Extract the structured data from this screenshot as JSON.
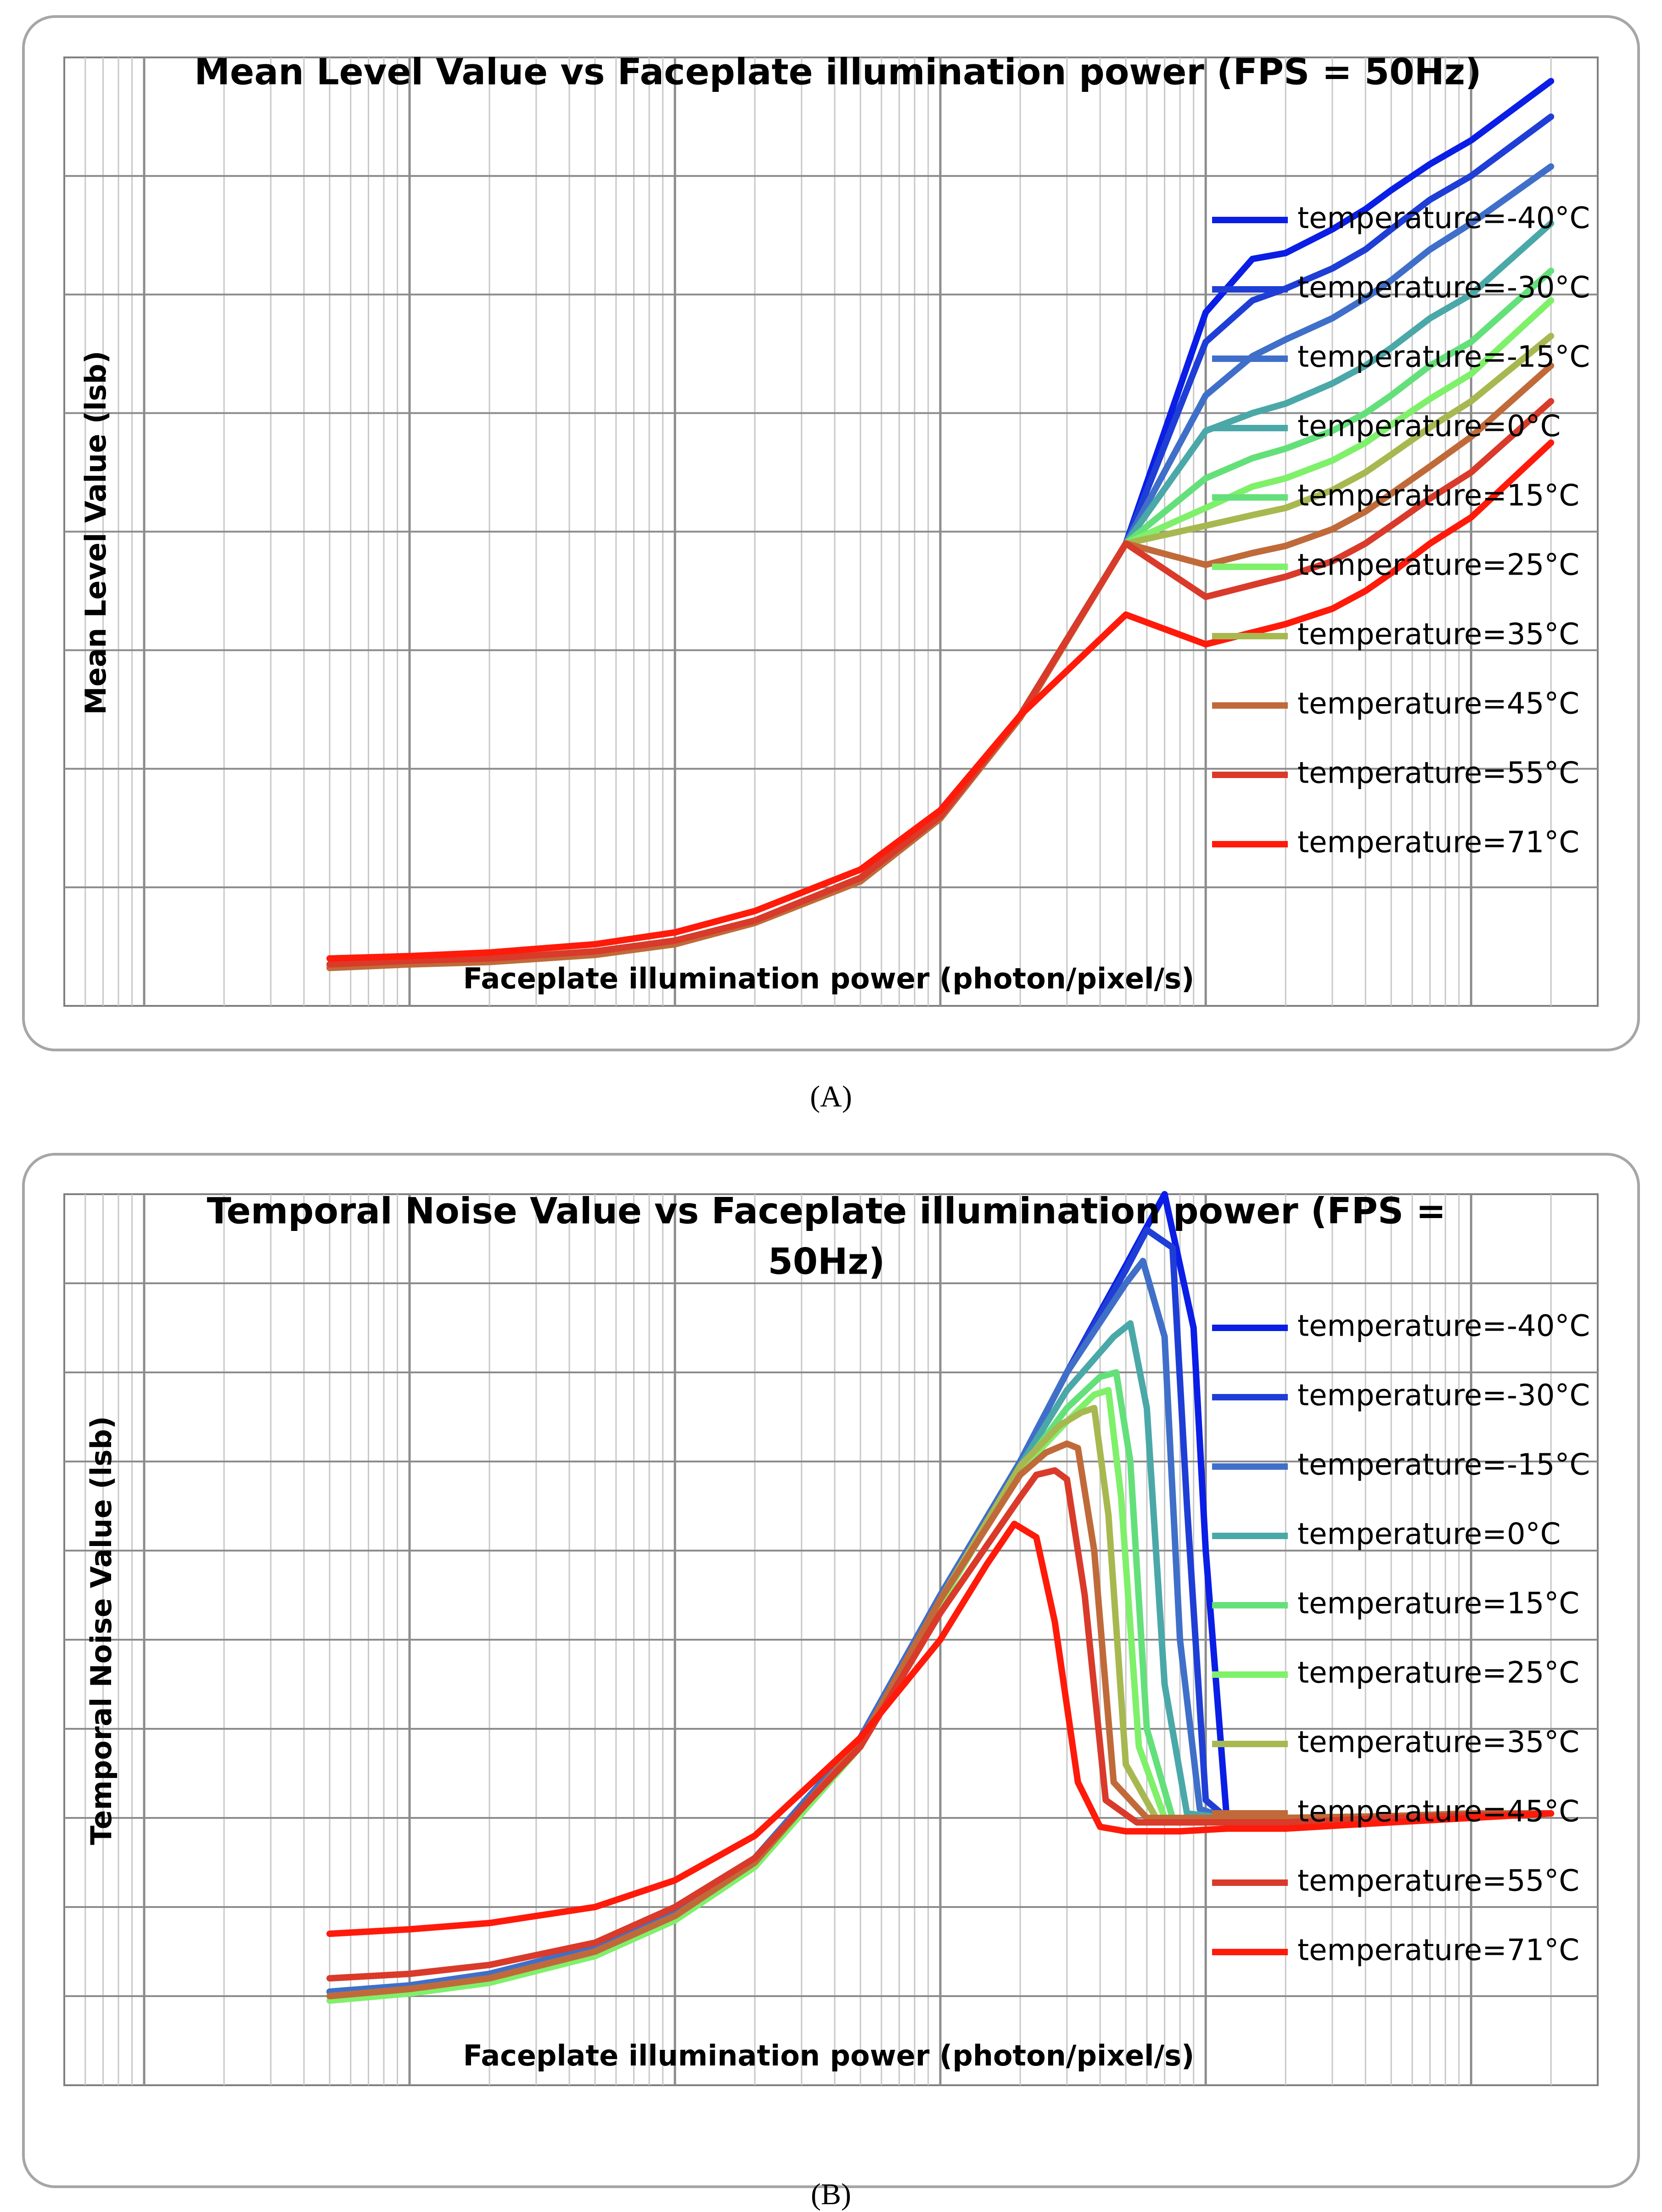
{
  "chart_data": [
    {
      "type": "line",
      "panel_label": "(A)",
      "title": "Mean Level Value vs Faceplate illumination power (FPS = 50Hz)",
      "xlabel": "Faceplate illumination power (photon/pixel/s)",
      "ylabel": "Mean Level Value (lsb)",
      "xscale": "log",
      "xlim": [
        0.5,
        300000
      ],
      "ylim": [
        0,
        8
      ],
      "tick_labels_shown": false,
      "grid": true,
      "legend_position": "right",
      "series": [
        {
          "name": "temperature=-40°C",
          "color": "#0a1ee6",
          "x": [
            5,
            10,
            20,
            50,
            100,
            200,
            500,
            1000,
            2000,
            5000,
            10000,
            15000,
            20000,
            30000,
            40000,
            50000,
            70000,
            100000,
            200000
          ],
          "y": [
            0.35,
            0.38,
            0.4,
            0.46,
            0.55,
            0.72,
            1.08,
            1.6,
            2.45,
            3.9,
            5.85,
            6.3,
            6.35,
            6.55,
            6.72,
            6.88,
            7.1,
            7.3,
            7.8
          ]
        },
        {
          "name": "temperature=-30°C",
          "color": "#1f3ed6",
          "x": [
            5,
            10,
            20,
            50,
            100,
            200,
            500,
            1000,
            2000,
            5000,
            10000,
            15000,
            20000,
            30000,
            40000,
            50000,
            70000,
            100000,
            200000
          ],
          "y": [
            0.35,
            0.38,
            0.4,
            0.46,
            0.55,
            0.72,
            1.08,
            1.6,
            2.45,
            3.9,
            5.6,
            5.95,
            6.05,
            6.22,
            6.38,
            6.55,
            6.8,
            7.0,
            7.5
          ]
        },
        {
          "name": "temperature=-15°C",
          "color": "#3f6fc9",
          "x": [
            5,
            10,
            20,
            50,
            100,
            200,
            500,
            1000,
            2000,
            5000,
            10000,
            15000,
            20000,
            30000,
            40000,
            50000,
            70000,
            100000,
            200000
          ],
          "y": [
            0.35,
            0.38,
            0.4,
            0.46,
            0.55,
            0.72,
            1.08,
            1.6,
            2.45,
            3.9,
            5.15,
            5.48,
            5.62,
            5.8,
            5.97,
            6.12,
            6.38,
            6.6,
            7.08
          ]
        },
        {
          "name": "temperature=0°C",
          "color": "#4aa8a8",
          "x": [
            5,
            10,
            20,
            50,
            100,
            200,
            500,
            1000,
            2000,
            5000,
            10000,
            15000,
            20000,
            30000,
            40000,
            50000,
            70000,
            100000,
            200000
          ],
          "y": [
            0.35,
            0.38,
            0.4,
            0.46,
            0.55,
            0.72,
            1.08,
            1.6,
            2.45,
            3.9,
            4.85,
            5.0,
            5.08,
            5.25,
            5.4,
            5.55,
            5.8,
            6.0,
            6.6
          ]
        },
        {
          "name": "temperature=15°C",
          "color": "#64e07a",
          "x": [
            5,
            10,
            20,
            50,
            100,
            200,
            500,
            1000,
            2000,
            5000,
            10000,
            15000,
            20000,
            30000,
            40000,
            50000,
            70000,
            100000,
            200000
          ],
          "y": [
            0.35,
            0.38,
            0.4,
            0.46,
            0.55,
            0.72,
            1.08,
            1.6,
            2.45,
            3.9,
            4.45,
            4.62,
            4.7,
            4.85,
            5.0,
            5.15,
            5.4,
            5.6,
            6.2
          ]
        },
        {
          "name": "temperature=25°C",
          "color": "#7ff06a",
          "x": [
            5,
            10,
            20,
            50,
            100,
            200,
            500,
            1000,
            2000,
            5000,
            10000,
            15000,
            20000,
            30000,
            40000,
            50000,
            70000,
            100000,
            200000
          ],
          "y": [
            0.35,
            0.38,
            0.4,
            0.46,
            0.55,
            0.72,
            1.08,
            1.6,
            2.45,
            3.9,
            4.2,
            4.38,
            4.45,
            4.6,
            4.75,
            4.9,
            5.12,
            5.33,
            5.95
          ]
        },
        {
          "name": "temperature=35°C",
          "color": "#a8b850",
          "x": [
            5,
            10,
            20,
            50,
            100,
            200,
            500,
            1000,
            2000,
            5000,
            10000,
            15000,
            20000,
            30000,
            40000,
            50000,
            70000,
            100000,
            200000
          ],
          "y": [
            0.32,
            0.35,
            0.37,
            0.43,
            0.52,
            0.7,
            1.05,
            1.58,
            2.43,
            3.9,
            4.05,
            4.14,
            4.2,
            4.35,
            4.5,
            4.65,
            4.88,
            5.1,
            5.65
          ]
        },
        {
          "name": "temperature=45°C",
          "color": "#c06a3a",
          "x": [
            5,
            10,
            20,
            50,
            100,
            200,
            500,
            1000,
            2000,
            5000,
            10000,
            15000,
            20000,
            30000,
            40000,
            50000,
            70000,
            100000,
            200000
          ],
          "y": [
            0.32,
            0.35,
            0.37,
            0.43,
            0.52,
            0.7,
            1.05,
            1.58,
            2.43,
            3.9,
            3.72,
            3.82,
            3.88,
            4.02,
            4.17,
            4.32,
            4.55,
            4.8,
            5.4
          ]
        },
        {
          "name": "temperature=55°C",
          "color": "#d93a2a",
          "x": [
            5,
            10,
            20,
            50,
            100,
            200,
            500,
            1000,
            2000,
            5000,
            10000,
            15000,
            20000,
            30000,
            40000,
            50000,
            70000,
            100000,
            200000
          ],
          "y": [
            0.35,
            0.38,
            0.4,
            0.46,
            0.55,
            0.72,
            1.08,
            1.6,
            2.45,
            3.9,
            3.45,
            3.55,
            3.62,
            3.75,
            3.9,
            4.05,
            4.28,
            4.5,
            5.1
          ]
        },
        {
          "name": "temperature=71°C",
          "color": "#ff1a0a",
          "x": [
            5,
            10,
            20,
            50,
            100,
            200,
            500,
            1000,
            2000,
            5000,
            10000,
            15000,
            20000,
            30000,
            40000,
            50000,
            70000,
            100000,
            200000
          ],
          "y": [
            0.4,
            0.42,
            0.45,
            0.52,
            0.62,
            0.8,
            1.15,
            1.65,
            2.45,
            3.3,
            3.05,
            3.15,
            3.22,
            3.35,
            3.5,
            3.65,
            3.9,
            4.12,
            4.75
          ]
        }
      ]
    },
    {
      "type": "line",
      "panel_label": "(B)",
      "title_lines": [
        "Temporal Noise Value vs Faceplate illumination power (FPS =",
        "50Hz)"
      ],
      "xlabel": "Faceplate illumination power (photon/pixel/s)",
      "ylabel": "Temporal Noise Value (lsb)",
      "xscale": "log",
      "xlim": [
        0.5,
        300000
      ],
      "ylim": [
        0,
        10
      ],
      "tick_labels_shown": false,
      "grid": true,
      "legend_position": "right",
      "series": [
        {
          "name": "temperature=-40°C",
          "color": "#0a1ee6",
          "x": [
            5,
            10,
            20,
            50,
            100,
            200,
            500,
            1000,
            2000,
            3000,
            5000,
            7000,
            9000,
            10000,
            12000,
            15000,
            20000,
            30000,
            50000,
            100000,
            200000
          ],
          "y": [
            1.05,
            1.12,
            1.25,
            1.55,
            1.95,
            2.55,
            3.9,
            5.5,
            7.0,
            8.0,
            9.2,
            10.0,
            8.5,
            6.0,
            3.0,
            3.0,
            3.0,
            3.0,
            3.02,
            3.05,
            3.05
          ]
        },
        {
          "name": "temperature=-30°C",
          "color": "#1f3ed6",
          "x": [
            5,
            10,
            20,
            50,
            100,
            200,
            500,
            1000,
            2000,
            3000,
            5000,
            6000,
            7500,
            8500,
            10000,
            12000,
            15000,
            20000,
            50000,
            100000,
            200000
          ],
          "y": [
            1.05,
            1.12,
            1.25,
            1.55,
            1.95,
            2.55,
            3.9,
            5.5,
            7.0,
            8.0,
            9.15,
            9.6,
            9.4,
            6.5,
            3.2,
            3.0,
            3.0,
            3.0,
            3.02,
            3.05,
            3.05
          ]
        },
        {
          "name": "temperature=-15°C",
          "color": "#3f6fc9",
          "x": [
            5,
            10,
            20,
            50,
            100,
            200,
            500,
            1000,
            2000,
            3000,
            5000,
            5800,
            7000,
            8000,
            9500,
            12000,
            15000,
            20000,
            50000,
            100000,
            200000
          ],
          "y": [
            1.05,
            1.12,
            1.25,
            1.55,
            1.95,
            2.55,
            3.9,
            5.5,
            7.0,
            8.0,
            9.0,
            9.25,
            8.4,
            5.0,
            3.1,
            3.0,
            3.0,
            3.0,
            3.02,
            3.05,
            3.05
          ]
        },
        {
          "name": "temperature=0°C",
          "color": "#4aa8a8",
          "x": [
            5,
            10,
            20,
            50,
            100,
            200,
            500,
            1000,
            2000,
            3000,
            4500,
            5200,
            6000,
            7000,
            8500,
            12000,
            15000,
            20000,
            50000,
            100000,
            200000
          ],
          "y": [
            1.0,
            1.08,
            1.2,
            1.5,
            1.9,
            2.5,
            3.85,
            5.45,
            6.95,
            7.8,
            8.4,
            8.55,
            7.6,
            4.5,
            3.05,
            3.0,
            3.0,
            3.0,
            3.02,
            3.05,
            3.05
          ]
        },
        {
          "name": "temperature=15°C",
          "color": "#64e07a",
          "x": [
            5,
            10,
            20,
            50,
            100,
            200,
            500,
            1000,
            2000,
            3000,
            4000,
            4600,
            5200,
            6000,
            7500,
            12000,
            15000,
            20000,
            50000,
            100000,
            200000
          ],
          "y": [
            0.95,
            1.03,
            1.15,
            1.45,
            1.85,
            2.45,
            3.8,
            5.4,
            6.9,
            7.6,
            7.95,
            8.0,
            7.0,
            4.0,
            3.0,
            3.0,
            3.0,
            3.0,
            3.02,
            3.05,
            3.05
          ]
        },
        {
          "name": "temperature=25°C",
          "color": "#7ff06a",
          "x": [
            5,
            10,
            20,
            50,
            100,
            200,
            500,
            1000,
            2000,
            3000,
            3800,
            4300,
            4800,
            5600,
            7000,
            12000,
            15000,
            20000,
            50000,
            100000,
            200000
          ],
          "y": [
            0.95,
            1.03,
            1.15,
            1.45,
            1.85,
            2.45,
            3.8,
            5.4,
            6.9,
            7.45,
            7.75,
            7.8,
            6.6,
            3.8,
            3.0,
            3.0,
            3.0,
            3.0,
            3.02,
            3.05,
            3.05
          ]
        },
        {
          "name": "temperature=35°C",
          "color": "#a8b850",
          "x": [
            5,
            10,
            20,
            50,
            100,
            200,
            500,
            1000,
            2000,
            2800,
            3400,
            3800,
            4300,
            5000,
            6500,
            12000,
            15000,
            20000,
            50000,
            100000,
            200000
          ],
          "y": [
            1.0,
            1.08,
            1.2,
            1.5,
            1.9,
            2.5,
            3.85,
            5.45,
            6.95,
            7.4,
            7.55,
            7.6,
            6.4,
            3.6,
            3.0,
            3.0,
            3.0,
            3.0,
            3.02,
            3.05,
            3.05
          ]
        },
        {
          "name": "temperature=45°C",
          "color": "#c06a3a",
          "x": [
            5,
            10,
            20,
            50,
            100,
            200,
            500,
            1000,
            2000,
            2500,
            3000,
            3300,
            3800,
            4500,
            6000,
            12000,
            15000,
            20000,
            50000,
            100000,
            200000
          ],
          "y": [
            1.0,
            1.08,
            1.2,
            1.5,
            1.9,
            2.5,
            3.85,
            5.45,
            6.85,
            7.1,
            7.2,
            7.15,
            6.0,
            3.4,
            3.0,
            3.0,
            3.0,
            3.0,
            3.02,
            3.05,
            3.05
          ]
        },
        {
          "name": "temperature=55°C",
          "color": "#d93a2a",
          "x": [
            5,
            10,
            20,
            50,
            100,
            200,
            500,
            1000,
            2000,
            2300,
            2700,
            3000,
            3500,
            4200,
            5500,
            12000,
            15000,
            20000,
            50000,
            100000,
            200000
          ],
          "y": [
            1.2,
            1.25,
            1.35,
            1.6,
            2.0,
            2.55,
            3.8,
            5.3,
            6.6,
            6.85,
            6.9,
            6.8,
            5.5,
            3.2,
            2.95,
            2.95,
            2.95,
            2.95,
            3.0,
            3.03,
            3.05
          ]
        },
        {
          "name": "temperature=71°C",
          "color": "#ff1a0a",
          "x": [
            5,
            10,
            20,
            50,
            100,
            200,
            500,
            1000,
            1500,
            1900,
            2300,
            2700,
            3300,
            4000,
            5000,
            8000,
            12000,
            20000,
            50000,
            100000,
            200000
          ],
          "y": [
            1.7,
            1.75,
            1.82,
            2.0,
            2.3,
            2.8,
            3.9,
            5.0,
            5.85,
            6.3,
            6.15,
            5.2,
            3.4,
            2.9,
            2.85,
            2.85,
            2.88,
            2.88,
            2.95,
            3.0,
            3.05
          ]
        }
      ]
    }
  ]
}
